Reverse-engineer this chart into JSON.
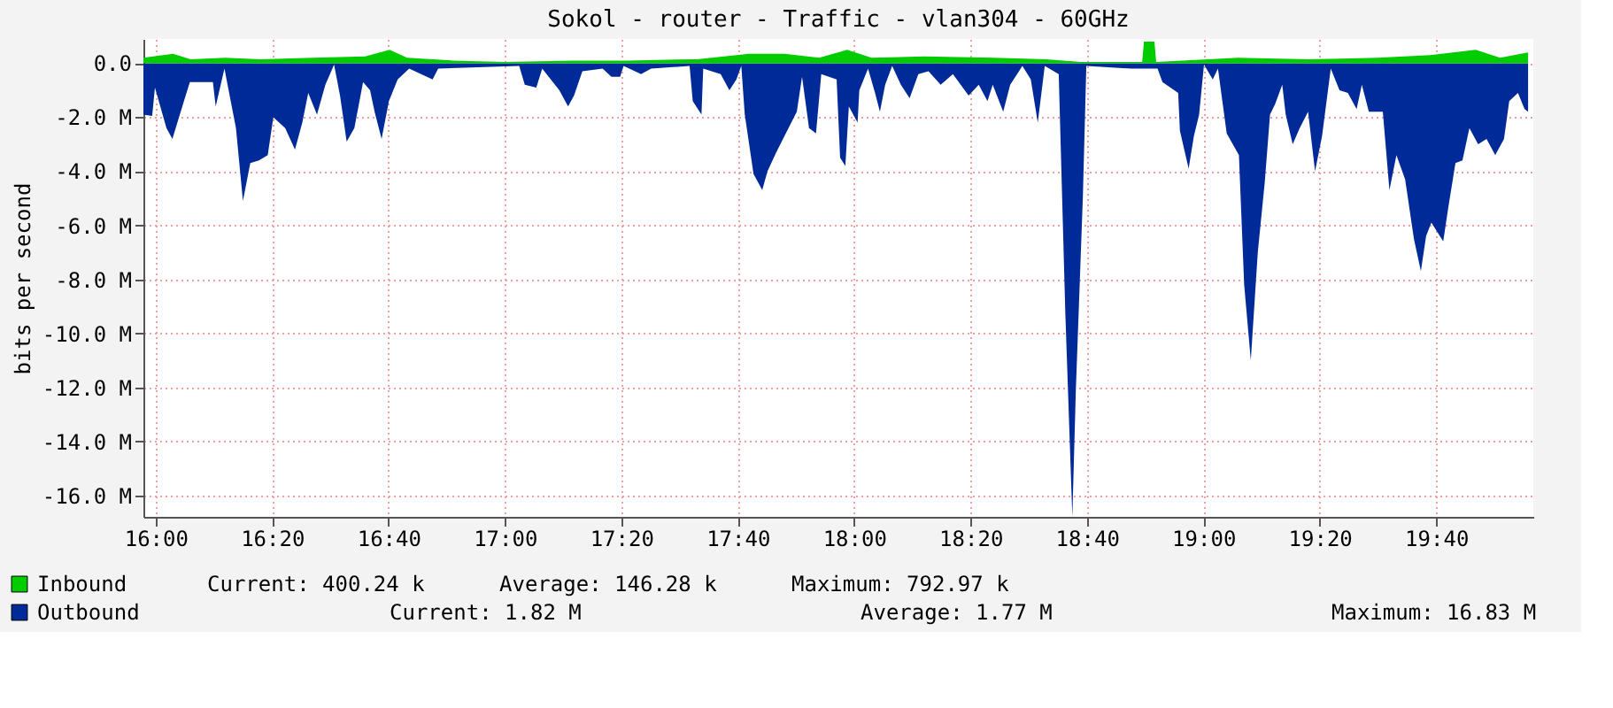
{
  "chart_data": {
    "type": "area",
    "title": "Sokol - router - Traffic - vlan304 - 60GHz",
    "ylabel": "bits per second",
    "xlim": [
      15.965,
      19.945
    ],
    "ylim": [
      -16.8,
      0.9
    ],
    "xticks": [
      {
        "value": 16,
        "label": "16:00"
      },
      {
        "value": 16.3333,
        "label": "16:20"
      },
      {
        "value": 16.6667,
        "label": "16:40"
      },
      {
        "value": 17,
        "label": "17:00"
      },
      {
        "value": 17.3333,
        "label": "17:20"
      },
      {
        "value": 17.6667,
        "label": "17:40"
      },
      {
        "value": 18,
        "label": "18:00"
      },
      {
        "value": 18.3333,
        "label": "18:20"
      },
      {
        "value": 18.6667,
        "label": "18:40"
      },
      {
        "value": 19,
        "label": "19:00"
      },
      {
        "value": 19.3333,
        "label": "19:20"
      },
      {
        "value": 19.6667,
        "label": "19:40"
      }
    ],
    "yticks": [
      {
        "value": 0,
        "label": "0.0"
      },
      {
        "value": -2,
        "label": "-2.0 M"
      },
      {
        "value": -4,
        "label": "-4.0 M"
      },
      {
        "value": -6,
        "label": "-6.0 M"
      },
      {
        "value": -8,
        "label": "-8.0 M"
      },
      {
        "value": -10,
        "label": "-10.0 M"
      },
      {
        "value": -12,
        "label": "-12.0 M"
      },
      {
        "value": -14,
        "label": "-14.0 M"
      },
      {
        "value": -16,
        "label": "-16.0 M"
      }
    ],
    "grid": true,
    "legend": "bottom",
    "annotations": [
      "Current:  400.24 k",
      "Average:  146.28 k",
      "Maximum:  792.97 k",
      "Current:    1.82 M",
      "Average:    1.77 M",
      "Maximum:   16.83 M"
    ],
    "series": [
      {
        "name": "Outbound",
        "color": "#002a97",
        "x": [
          15.965,
          15.99,
          15.998,
          16.031,
          16.048,
          16.081,
          16.098,
          16.164,
          16.172,
          16.197,
          16.23,
          16.25,
          16.271,
          16.296,
          16.321,
          16.337,
          16.371,
          16.399,
          16.42,
          16.437,
          16.462,
          16.486,
          16.511,
          16.528,
          16.547,
          16.569,
          16.594,
          16.614,
          16.627,
          16.647,
          16.668,
          16.693,
          16.726,
          16.793,
          16.809,
          17.041,
          17.057,
          17.09,
          17.107,
          17.156,
          17.181,
          17.198,
          17.222,
          17.28,
          17.305,
          17.33,
          17.34,
          17.39,
          17.419,
          17.529,
          17.538,
          17.563,
          17.568,
          17.618,
          17.643,
          17.663,
          17.677,
          17.687,
          17.712,
          17.737,
          17.752,
          17.777,
          17.816,
          17.836,
          17.851,
          17.871,
          17.891,
          17.906,
          17.95,
          17.96,
          17.975,
          17.985,
          18.01,
          18.015,
          18.04,
          18.06,
          18.074,
          18.089,
          18.109,
          18.134,
          18.159,
          18.184,
          18.213,
          18.248,
          18.283,
          18.328,
          18.357,
          18.382,
          18.397,
          18.427,
          18.447,
          18.482,
          18.506,
          18.526,
          18.546,
          18.586,
          18.605,
          18.625,
          18.635,
          18.655,
          18.665,
          18.794,
          18.869,
          18.883,
          18.928,
          18.933,
          18.958,
          18.973,
          18.988,
          19.002,
          19.027,
          19.042,
          19.067,
          19.102,
          19.117,
          19.136,
          19.156,
          19.176,
          19.191,
          19.206,
          19.226,
          19.236,
          19.256,
          19.276,
          19.3,
          19.32,
          19.34,
          19.365,
          19.39,
          19.414,
          19.439,
          19.454,
          19.474,
          19.514,
          19.533,
          19.553,
          19.578,
          19.603,
          19.623,
          19.638,
          19.653,
          19.687,
          19.702,
          19.722,
          19.742,
          19.762,
          19.787,
          19.811,
          19.836,
          19.861,
          19.876,
          19.901,
          19.92,
          19.93
        ],
        "values": [
          -1.9,
          -1.95,
          -0.9,
          -2.4,
          -2.8,
          -1.4,
          -0.7,
          -0.7,
          -1.6,
          -0.2,
          -2.4,
          -5.1,
          -3.7,
          -3.6,
          -3.4,
          -2.0,
          -2.4,
          -3.2,
          -2.2,
          -1.1,
          -1.9,
          -0.8,
          -0.05,
          -1.2,
          -2.9,
          -2.4,
          -0.7,
          -1.0,
          -1.8,
          -2.8,
          -1.4,
          -0.6,
          -0.2,
          -0.6,
          -0.2,
          -0.1,
          -0.8,
          -0.9,
          -0.2,
          -1.0,
          -1.6,
          -1.2,
          -0.3,
          -0.2,
          -0.5,
          -0.5,
          -0.1,
          -0.4,
          -0.2,
          -0.1,
          -1.4,
          -1.9,
          -0.2,
          -0.4,
          -1.0,
          -0.6,
          -0.1,
          -1.9,
          -4.1,
          -4.7,
          -4.0,
          -3.3,
          -2.3,
          -1.8,
          -0.5,
          -2.4,
          -2.6,
          -0.4,
          -0.6,
          -3.5,
          -3.8,
          -1.6,
          -2.2,
          -1.0,
          -0.2,
          -1.1,
          -1.8,
          -0.8,
          -0.1,
          -0.8,
          -1.3,
          -0.4,
          -0.3,
          -0.8,
          -0.4,
          -1.2,
          -0.8,
          -1.4,
          -0.8,
          -1.8,
          -0.8,
          -0.1,
          -0.6,
          -2.2,
          -0.1,
          -0.4,
          -9.3,
          -16.8,
          -12.1,
          -5.0,
          -0.1,
          -0.2,
          -0.2,
          -0.7,
          -1.1,
          -2.5,
          -3.9,
          -2.7,
          -1.9,
          -0.05,
          -0.6,
          -0.2,
          -2.6,
          -3.4,
          -8.2,
          -11.0,
          -7.0,
          -4.4,
          -1.9,
          -1.5,
          -0.8,
          -1.9,
          -3.0,
          -2.4,
          -1.8,
          -4.0,
          -2.7,
          -0.2,
          -1.0,
          -1.1,
          -1.7,
          -0.8,
          -1.8,
          -1.8,
          -4.7,
          -3.4,
          -4.3,
          -6.5,
          -7.7,
          -6.4,
          -5.9,
          -6.6,
          -5.3,
          -3.7,
          -3.6,
          -2.4,
          -3.0,
          -2.8,
          -3.4,
          -2.8,
          -1.4,
          -1.1,
          -1.7,
          -1.8
        ]
      },
      {
        "name": "Inbound",
        "color": "#00cc00",
        "x": [
          15.965,
          16.05,
          16.1,
          16.2,
          16.3,
          16.45,
          16.6,
          16.67,
          16.72,
          16.85,
          17.0,
          17.2,
          17.35,
          17.55,
          17.7,
          17.8,
          17.9,
          17.98,
          18.05,
          18.2,
          18.4,
          18.55,
          18.65,
          18.825,
          18.83,
          18.86,
          18.865,
          19.1,
          19.3,
          19.5,
          19.65,
          19.78,
          19.85,
          19.93
        ],
        "values": [
          0.2,
          0.35,
          0.15,
          0.2,
          0.15,
          0.2,
          0.25,
          0.5,
          0.2,
          0.1,
          0.05,
          0.1,
          0.1,
          0.15,
          0.35,
          0.35,
          0.2,
          0.5,
          0.2,
          0.25,
          0.2,
          0.15,
          0.05,
          0.05,
          0.8,
          0.8,
          0.05,
          0.2,
          0.15,
          0.2,
          0.3,
          0.5,
          0.2,
          0.4
        ]
      }
    ]
  }
}
